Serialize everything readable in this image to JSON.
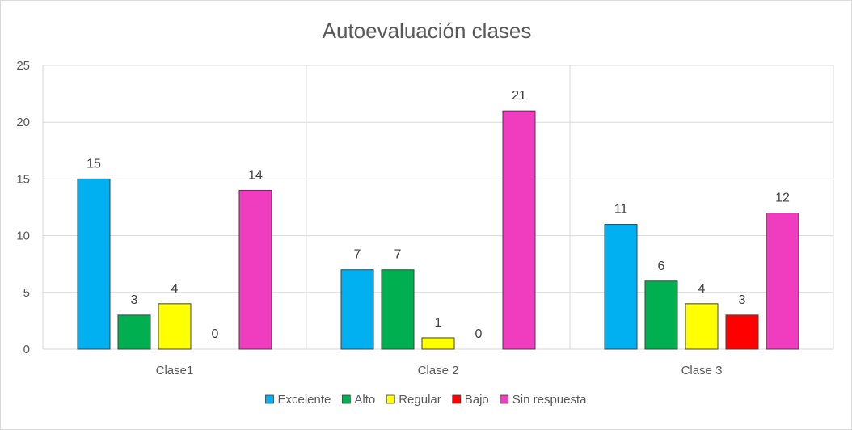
{
  "chart_data": {
    "type": "bar",
    "title": "Autoevaluación clases",
    "categories": [
      "Clase1",
      "Clase 2",
      "Clase 3"
    ],
    "ylim": [
      0,
      25
    ],
    "yticks": [
      0,
      5,
      10,
      15,
      20,
      25
    ],
    "grid": true,
    "legend": "bottom",
    "series": [
      {
        "name": "Excelente",
        "color": "#00b0f0",
        "values": [
          15,
          7,
          11
        ]
      },
      {
        "name": "Alto",
        "color": "#00b050",
        "values": [
          3,
          7,
          6
        ]
      },
      {
        "name": "Regular",
        "color": "#ffff00",
        "values": [
          4,
          1,
          4
        ]
      },
      {
        "name": "Bajo",
        "color": "#ff0000",
        "values": [
          0,
          0,
          3
        ]
      },
      {
        "name": "Sin respuesta",
        "color": "#f03cbe",
        "values": [
          14,
          21,
          12
        ]
      }
    ]
  }
}
